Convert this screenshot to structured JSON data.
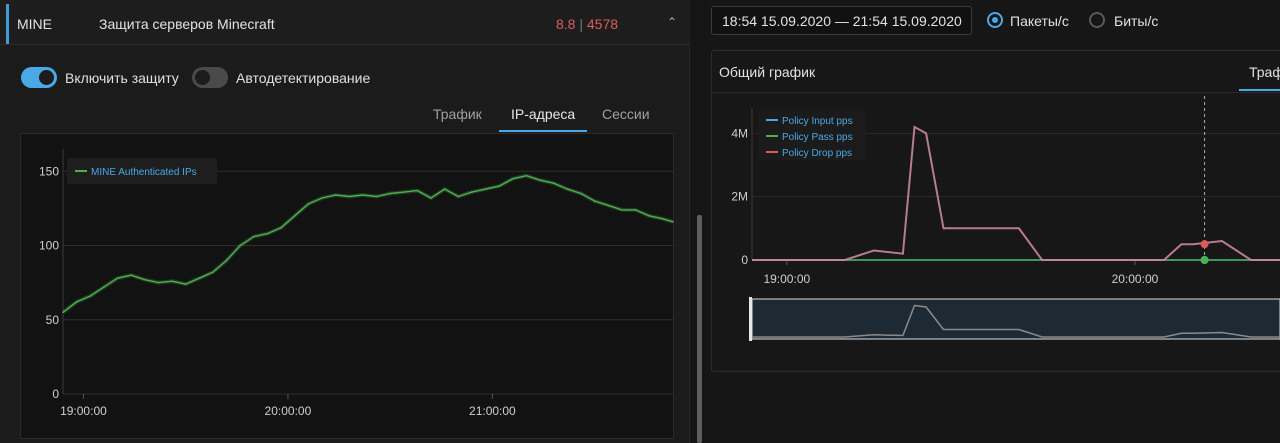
{
  "service": {
    "code": "MINE",
    "name": "Защита серверов Minecraft",
    "stat_a": "8.8",
    "stat_sep": "|",
    "stat_b": "4578",
    "collapse_glyph": "⌃"
  },
  "toggles": {
    "protection_label": "Включить защиту",
    "protection_on": true,
    "autodetect_label": "Автодетектирование",
    "autodetect_on": false
  },
  "tabs": [
    {
      "label": "Трафик",
      "active": false
    },
    {
      "label": "IP-адреса",
      "active": true
    },
    {
      "label": "Сессии",
      "active": false
    }
  ],
  "range": {
    "label": "18:54 15.09.2020 — 21:54 15.09.2020",
    "units": [
      {
        "label": "Пакеты/с",
        "selected": true
      },
      {
        "label": "Биты/с",
        "selected": false
      }
    ]
  },
  "card": {
    "title": "Общий график",
    "tab_label": "Трафик"
  },
  "colors": {
    "accent": "#4aa8e6",
    "green_series": "#4caf50",
    "drop_series": "#e05a5a",
    "stat_red": "#e05a5a"
  },
  "chart_data": [
    {
      "type": "line",
      "series": [
        {
          "name": "MINE Authenticated IPs",
          "color": "#4caf50",
          "x": [
            "18:54",
            "18:58",
            "19:02",
            "19:06",
            "19:10",
            "19:14",
            "19:18",
            "19:22",
            "19:26",
            "19:30",
            "19:34",
            "19:38",
            "19:42",
            "19:46",
            "19:50",
            "19:54",
            "19:58",
            "20:02",
            "20:06",
            "20:10",
            "20:14",
            "20:18",
            "20:22",
            "20:26",
            "20:30",
            "20:34",
            "20:38",
            "20:42",
            "20:46",
            "20:50",
            "20:54",
            "20:58",
            "21:02",
            "21:06",
            "21:10",
            "21:14",
            "21:18",
            "21:22",
            "21:26",
            "21:30",
            "21:34",
            "21:38",
            "21:42",
            "21:46",
            "21:50",
            "21:53"
          ],
          "values": [
            55,
            62,
            66,
            72,
            78,
            80,
            77,
            75,
            76,
            74,
            78,
            82,
            90,
            100,
            106,
            108,
            112,
            120,
            128,
            132,
            134,
            133,
            134,
            133,
            135,
            136,
            137,
            132,
            138,
            133,
            136,
            138,
            140,
            145,
            147,
            144,
            142,
            138,
            135,
            130,
            127,
            124,
            124,
            120,
            118,
            116
          ]
        }
      ],
      "x_ticks": [
        "19:00:00",
        "20:00:00",
        "21:00:00"
      ],
      "y_ticks": [
        "0",
        "50",
        "100",
        "150"
      ],
      "ylim": [
        0,
        165
      ],
      "grid": true,
      "legend_position": "top-left"
    },
    {
      "type": "line",
      "series": [
        {
          "name": "Policy Input pps",
          "color": "#4aa8e6",
          "x": [
            "18:54",
            "19:00",
            "19:10",
            "19:15",
            "19:20",
            "19:22",
            "19:24",
            "19:27",
            "19:30",
            "19:33",
            "19:36",
            "19:40",
            "19:44",
            "19:48",
            "19:50",
            "19:55",
            "20:00",
            "20:05",
            "20:08",
            "20:10",
            "20:15",
            "20:20",
            "20:25"
          ],
          "values": [
            0,
            0,
            0,
            0,
            0,
            0,
            0,
            0,
            0,
            0,
            0,
            0,
            0,
            0,
            0,
            0,
            0,
            0,
            0,
            0,
            0,
            0,
            0
          ]
        },
        {
          "name": "Policy Pass pps",
          "color": "#4caf50",
          "x": [
            "18:54",
            "19:00",
            "19:10",
            "19:15",
            "19:20",
            "19:22",
            "19:24",
            "19:27",
            "19:30",
            "19:33",
            "19:36",
            "19:40",
            "19:44",
            "19:48",
            "19:50",
            "19:55",
            "20:00",
            "20:05",
            "20:08",
            "20:10",
            "20:15",
            "20:20",
            "20:25"
          ],
          "values": [
            0,
            0,
            0,
            0,
            0,
            0,
            0,
            0,
            0,
            0,
            0,
            0,
            0,
            0,
            0,
            0,
            0,
            0,
            0,
            0,
            0,
            0,
            0
          ]
        },
        {
          "name": "Policy Drop pps",
          "color": "#e05a5a",
          "x": [
            "18:54",
            "19:00",
            "19:10",
            "19:15",
            "19:20",
            "19:22",
            "19:24",
            "19:27",
            "19:30",
            "19:33",
            "19:36",
            "19:40",
            "19:44",
            "19:48",
            "19:50",
            "19:55",
            "20:00",
            "20:05",
            "20:08",
            "20:10",
            "20:15",
            "20:20",
            "20:25"
          ],
          "values": [
            0,
            0,
            0,
            300000,
            200000,
            4200000,
            4000000,
            1000000,
            1000000,
            1000000,
            1000000,
            1000000,
            0,
            0,
            0,
            0,
            0,
            0,
            500000,
            500000,
            600000,
            0,
            0
          ]
        }
      ],
      "x_ticks": [
        "19:00:00",
        "20:00:00"
      ],
      "y_ticks": [
        "0",
        "2M",
        "4M"
      ],
      "ylim": [
        0,
        4800000
      ],
      "grid": true,
      "legend_position": "top-left",
      "crosshair_x": "20:12"
    }
  ]
}
